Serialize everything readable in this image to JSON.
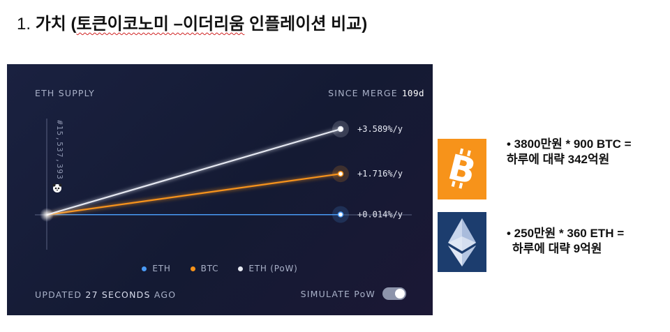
{
  "slide": {
    "number": "1.",
    "title_prefix": "가치 (",
    "title_underlined": "토큰이코노미 –이더리움",
    "title_suffix": " 인플레이션 비교)"
  },
  "panel": {
    "title": "ETH SUPPLY",
    "since_merge_label": "SINCE MERGE",
    "since_merge_value": "109d",
    "block_label": "#15,537,393",
    "updated_prefix": "UPDATED",
    "updated_value": "27 SECONDS",
    "updated_suffix": "AGO",
    "simulate_label": "SIMULATE PoW",
    "simulate_on": true
  },
  "chart_data": {
    "type": "line",
    "x_start_label": "#15,537,393",
    "series": [
      {
        "name": "ETH",
        "color": "#4a9af5",
        "end_label": "+0.014%/y",
        "end_value": 0.014
      },
      {
        "name": "BTC",
        "color": "#f7931a",
        "end_label": "+1.716%/y",
        "end_value": 1.716
      },
      {
        "name": "ETH (PoW)",
        "color": "#e6e9f2",
        "end_label": "+3.589%/y",
        "end_value": 3.589
      }
    ]
  },
  "legend": [
    {
      "label": "ETH",
      "color": "#4a9af5"
    },
    {
      "label": "BTC",
      "color": "#f7931a"
    },
    {
      "label": "ETH (PoW)",
      "color": "#e6e9f2"
    }
  ],
  "icons": {
    "btc_logo": "bitcoin-logo-icon",
    "eth_logo": "ethereum-logo-icon",
    "panda": "panda-icon"
  },
  "notes": {
    "btc": {
      "line1": "• 3800만원 * 900 BTC =",
      "line2": "하루에 대략 342억원"
    },
    "eth": {
      "line1": "• 250만원 * 360 ETH =",
      "line2": "하루에 대략 9억원"
    }
  }
}
